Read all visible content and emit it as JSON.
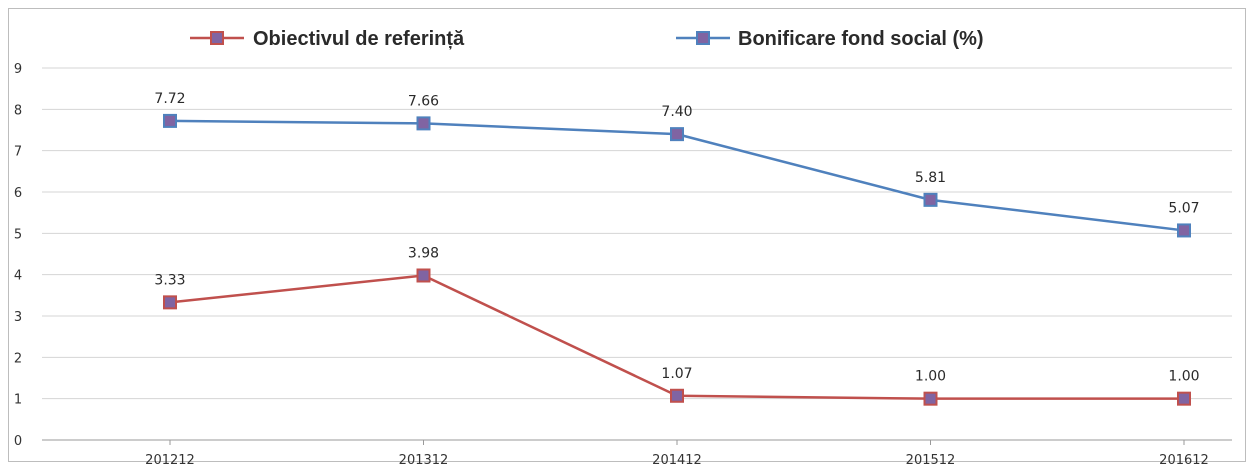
{
  "chart_data": {
    "type": "line",
    "categories": [
      "201212",
      "201312",
      "201412",
      "201512",
      "201612"
    ],
    "series": [
      {
        "name": "Obiectivul de referință",
        "values": [
          3.33,
          3.98,
          1.07,
          1.0,
          1.0
        ],
        "labels": [
          "3.33",
          "3.98",
          "1.07",
          "1.00",
          "1.00"
        ],
        "color": "#c0504d",
        "marker_color": "#8064a2"
      },
      {
        "name": "Bonificare fond social (%)",
        "values": [
          7.72,
          7.66,
          7.4,
          5.81,
          5.07
        ],
        "labels": [
          "7.72",
          "7.66",
          "7.40",
          "5.81",
          "5.07"
        ],
        "color": "#4f81bd",
        "marker_color": "#8064a2"
      }
    ],
    "ylim": [
      0,
      9
    ],
    "yticks": [
      "0",
      "1",
      "2",
      "3",
      "4",
      "5",
      "6",
      "7",
      "8",
      "9"
    ],
    "grid": true,
    "legend_position": "top"
  }
}
